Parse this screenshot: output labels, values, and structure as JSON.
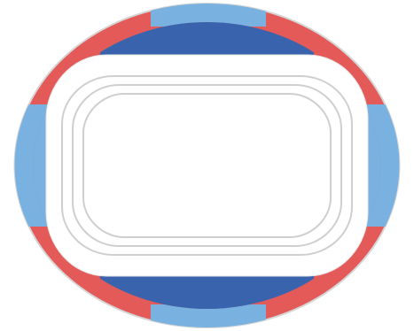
{
  "stadium": {
    "colors": {
      "outer_light_blue": "#79B1E0",
      "red": "#E35A59",
      "green": "#2FA65C",
      "dark_blue": "#3A63AE",
      "field_white": "#FFFFFF",
      "track_lines": "#CFCFCF",
      "outer_rim": "#D6D6D6"
    },
    "sections": [
      {
        "id": "top-center",
        "color_key": "dark_blue"
      },
      {
        "id": "bottom-center",
        "color_key": "dark_blue"
      },
      {
        "id": "left-end",
        "color_key": "outer_light_blue"
      },
      {
        "id": "right-end",
        "color_key": "outer_light_blue"
      },
      {
        "id": "top-left-corner",
        "color_key": "green"
      },
      {
        "id": "top-right-corner",
        "color_key": "green"
      },
      {
        "id": "bottom-left-corner",
        "color_key": "green"
      },
      {
        "id": "bottom-right-corner",
        "color_key": "green"
      }
    ]
  }
}
